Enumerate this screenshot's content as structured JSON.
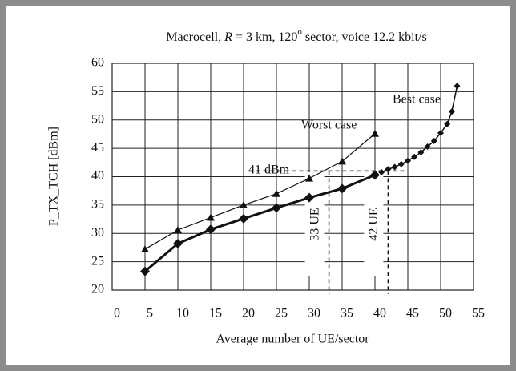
{
  "chart_data": {
    "type": "line",
    "title": [
      "Macrocell, ",
      "R",
      " = 3 km, 120",
      "o",
      " sector, voice 12.2 kbit/s"
    ],
    "xlabel": "Average number of UE/sector",
    "ylabel": "P_TX_TCH [dBm]",
    "xlim": [
      0,
      55
    ],
    "xticks": [
      0,
      5,
      10,
      15,
      20,
      25,
      30,
      35,
      40,
      45,
      50,
      55
    ],
    "ylim": [
      20,
      60
    ],
    "yticks": [
      20,
      25,
      30,
      35,
      40,
      45,
      50,
      55,
      60
    ],
    "grid": true,
    "series": [
      {
        "color": "#111",
        "marker": "triangle",
        "x": [
          5,
          10,
          15,
          20,
          25,
          30,
          35,
          40
        ],
        "values": [
          27.2,
          30.6,
          32.8,
          35.0,
          37.0,
          39.7,
          42.7,
          47.6
        ]
      },
      {
        "color": "#111",
        "marker": "diamond",
        "x": [
          5,
          10,
          15,
          20,
          25,
          30,
          35,
          40
        ],
        "values": [
          23.3,
          28.2,
          30.7,
          32.6,
          34.5,
          36.3,
          37.9,
          40.3
        ]
      },
      {
        "color": "#111",
        "marker": "small-diamond",
        "x": [
          41,
          42,
          43,
          44,
          45,
          46,
          47,
          48,
          49,
          50,
          51,
          51.7,
          52.5
        ],
        "values": [
          40.8,
          41.3,
          41.7,
          42.2,
          42.8,
          43.5,
          44.3,
          45.3,
          46.3,
          47.7,
          49.3,
          51.5,
          56.0
        ]
      }
    ],
    "annotations": [
      "Worst case",
      "Best case",
      "41 dBm",
      "33 UE",
      "42 UE"
    ],
    "ref_y": 41,
    "ref_x": [
      33,
      42
    ]
  }
}
